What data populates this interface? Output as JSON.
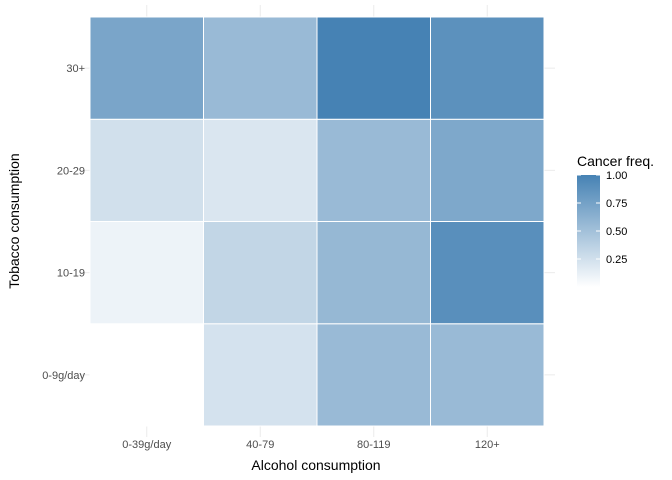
{
  "chart_data": {
    "type": "heatmap",
    "x_categories": [
      "0-39g/day",
      "40-79",
      "80-119",
      "120+"
    ],
    "y_categories": [
      "0-9g/day",
      "10-19",
      "20-29",
      "30+"
    ],
    "xlabel": "Alcohol consumption",
    "ylabel": "Tobacco consumption",
    "cells": [
      {
        "x": "0-39g/day",
        "y": "0-9g/day",
        "value": 0.0
      },
      {
        "x": "40-79",
        "y": "0-9g/day",
        "value": 0.23
      },
      {
        "x": "80-119",
        "y": "0-9g/day",
        "value": 0.55
      },
      {
        "x": "120+",
        "y": "0-9g/day",
        "value": 0.55
      },
      {
        "x": "0-39g/day",
        "y": "10-19",
        "value": 0.1
      },
      {
        "x": "40-79",
        "y": "10-19",
        "value": 0.33
      },
      {
        "x": "80-119",
        "y": "10-19",
        "value": 0.57
      },
      {
        "x": "120+",
        "y": "10-19",
        "value": 0.9
      },
      {
        "x": "0-39g/day",
        "y": "20-29",
        "value": 0.25
      },
      {
        "x": "40-79",
        "y": "20-29",
        "value": 0.2
      },
      {
        "x": "80-119",
        "y": "20-29",
        "value": 0.55
      },
      {
        "x": "120+",
        "y": "20-29",
        "value": 0.7
      },
      {
        "x": "0-39g/day",
        "y": "30+",
        "value": 0.72
      },
      {
        "x": "40-79",
        "y": "30+",
        "value": 0.55
      },
      {
        "x": "80-119",
        "y": "30+",
        "value": 1.0
      },
      {
        "x": "120+",
        "y": "30+",
        "value": 0.88
      }
    ],
    "color_scale": {
      "low": "#ffffff",
      "high": "#4682b4",
      "min": 0.0,
      "max": 1.0
    },
    "legend": {
      "title": "Cancer freq.",
      "ticks": [
        "0.25",
        "0.50",
        "0.75",
        "1.00"
      ],
      "tick_values": [
        0.25,
        0.5,
        0.75,
        1.0
      ],
      "placement": "right"
    },
    "grid": true
  }
}
